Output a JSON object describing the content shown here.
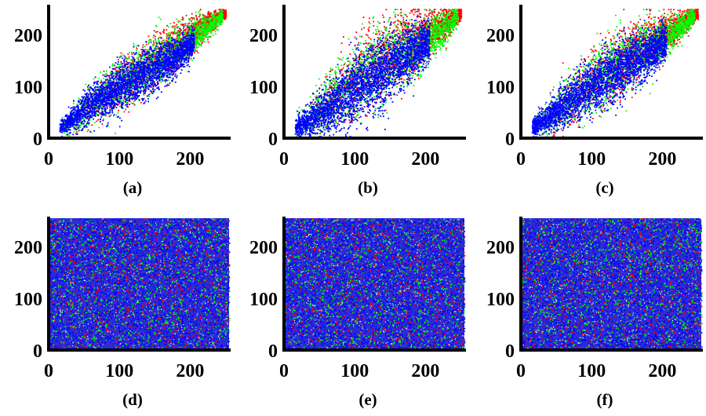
{
  "figure": {
    "panels": [
      {
        "label": "(a)",
        "pattern": "correlated",
        "spread": 1.0
      },
      {
        "label": "(b)",
        "pattern": "correlated",
        "spread": 1.45
      },
      {
        "label": "(c)",
        "pattern": "correlated",
        "spread": 1.2
      },
      {
        "label": "(d)",
        "pattern": "uniform"
      },
      {
        "label": "(e)",
        "pattern": "uniform"
      },
      {
        "label": "(f)",
        "pattern": "uniform"
      }
    ]
  },
  "chart_data": [
    {
      "type": "scatter",
      "title": "",
      "xlabel": "",
      "ylabel": "",
      "xlim": [
        0,
        255
      ],
      "ylim": [
        0,
        255
      ],
      "xticks": [
        "0",
        "100",
        "200"
      ],
      "yticks": [
        "0",
        "100",
        "200"
      ],
      "caption": "(a)",
      "series_colors": {
        "red": "#ff0000",
        "green": "#00ff00",
        "blue": "#0000ff"
      },
      "series": [
        {
          "color": "red",
          "x": [
            20,
            60,
            100,
            140,
            180,
            220,
            245
          ],
          "y": [
            22,
            62,
            105,
            142,
            180,
            218,
            240
          ]
        },
        {
          "color": "green",
          "x": [
            20,
            60,
            100,
            140,
            180,
            220,
            245
          ],
          "y": [
            22,
            64,
            108,
            140,
            175,
            212,
            238
          ]
        },
        {
          "color": "blue",
          "x": [
            20,
            60,
            100,
            140,
            180,
            220,
            245
          ],
          "y": [
            24,
            66,
            100,
            132,
            160,
            205,
            238
          ]
        }
      ]
    },
    {
      "type": "scatter",
      "title": "",
      "xlabel": "",
      "ylabel": "",
      "xlim": [
        0,
        255
      ],
      "ylim": [
        0,
        255
      ],
      "xticks": [
        "0",
        "100",
        "200"
      ],
      "yticks": [
        "0",
        "100",
        "200"
      ],
      "caption": "(b)",
      "series_colors": {
        "red": "#ff0000",
        "green": "#00ff00",
        "blue": "#0000ff"
      },
      "series": [
        {
          "color": "red",
          "x": [
            20,
            60,
            100,
            140,
            180,
            220,
            245
          ],
          "y": [
            22,
            70,
            120,
            160,
            185,
            215,
            240
          ]
        },
        {
          "color": "green",
          "x": [
            20,
            60,
            100,
            140,
            180,
            220,
            245
          ],
          "y": [
            22,
            68,
            115,
            150,
            175,
            205,
            238
          ]
        },
        {
          "color": "blue",
          "x": [
            20,
            60,
            100,
            140,
            180,
            220,
            245
          ],
          "y": [
            24,
            58,
            98,
            130,
            165,
            205,
            238
          ]
        }
      ]
    },
    {
      "type": "scatter",
      "title": "",
      "xlabel": "",
      "ylabel": "",
      "xlim": [
        0,
        255
      ],
      "ylim": [
        0,
        255
      ],
      "xticks": [
        "0",
        "100",
        "200"
      ],
      "yticks": [
        "0",
        "100",
        "200"
      ],
      "caption": "(c)",
      "series_colors": {
        "red": "#ff0000",
        "green": "#00ff00",
        "blue": "#0000ff"
      },
      "series": [
        {
          "color": "red",
          "x": [
            20,
            60,
            100,
            140,
            180,
            220,
            245
          ],
          "y": [
            22,
            65,
            112,
            150,
            185,
            215,
            240
          ]
        },
        {
          "color": "green",
          "x": [
            20,
            60,
            100,
            140,
            180,
            220,
            245
          ],
          "y": [
            22,
            66,
            110,
            145,
            178,
            210,
            238
          ]
        },
        {
          "color": "blue",
          "x": [
            20,
            60,
            100,
            140,
            180,
            220,
            245
          ],
          "y": [
            24,
            64,
            100,
            135,
            165,
            205,
            238
          ]
        }
      ]
    },
    {
      "type": "scatter",
      "title": "",
      "xlabel": "",
      "ylabel": "",
      "xlim": [
        0,
        255
      ],
      "ylim": [
        0,
        255
      ],
      "xticks": [
        "0",
        "100",
        "200"
      ],
      "yticks": [
        "0",
        "100",
        "200"
      ],
      "caption": "(d)",
      "series_colors": {
        "red": "#ff0000",
        "green": "#00ff00",
        "blue": "#0000ff"
      },
      "distribution": "uniform over [0,255] x [0,255] for all three series"
    },
    {
      "type": "scatter",
      "title": "",
      "xlabel": "",
      "ylabel": "",
      "xlim": [
        0,
        255
      ],
      "ylim": [
        0,
        255
      ],
      "xticks": [
        "0",
        "100",
        "200"
      ],
      "yticks": [
        "0",
        "100",
        "200"
      ],
      "caption": "(e)",
      "series_colors": {
        "red": "#ff0000",
        "green": "#00ff00",
        "blue": "#0000ff"
      },
      "distribution": "uniform over [0,255] x [0,255] for all three series"
    },
    {
      "type": "scatter",
      "title": "",
      "xlabel": "",
      "ylabel": "",
      "xlim": [
        0,
        255
      ],
      "ylim": [
        0,
        255
      ],
      "xticks": [
        "0",
        "100",
        "200"
      ],
      "yticks": [
        "0",
        "100",
        "200"
      ],
      "caption": "(f)",
      "series_colors": {
        "red": "#ff0000",
        "green": "#00ff00",
        "blue": "#0000ff"
      },
      "distribution": "uniform over [0,255] x [0,255] for all three series"
    }
  ]
}
